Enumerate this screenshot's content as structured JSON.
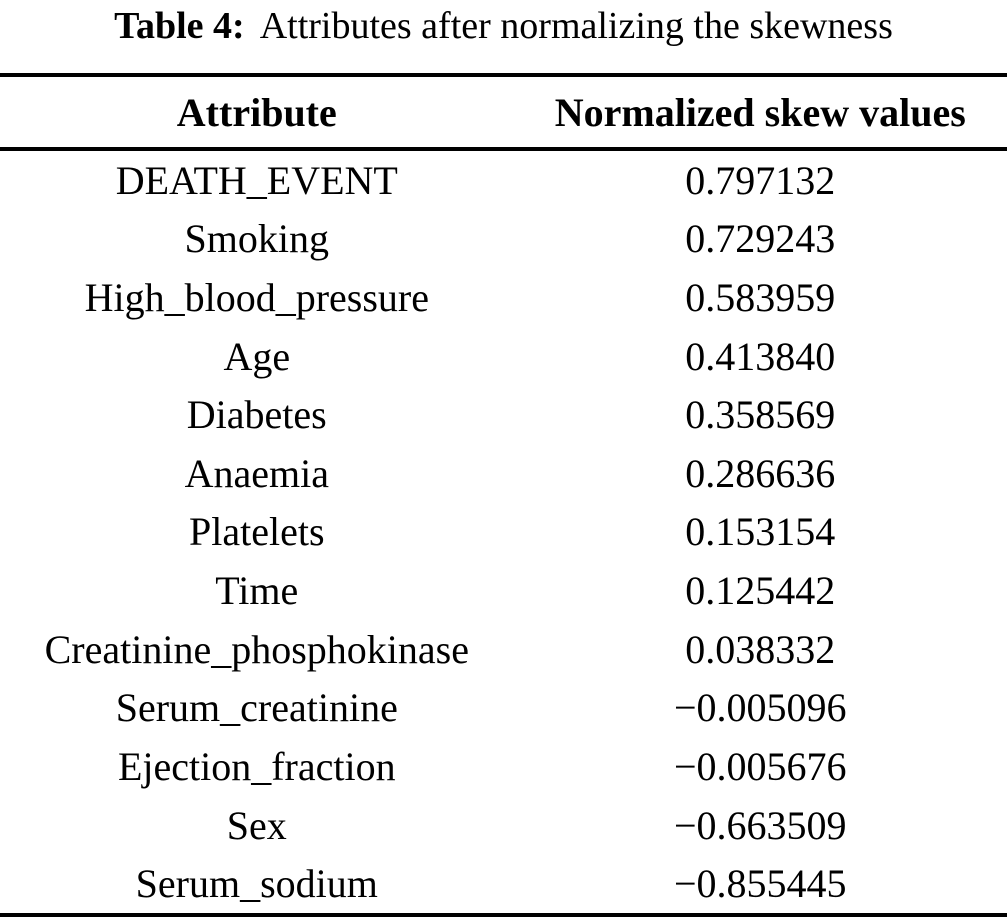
{
  "caption": {
    "label": "Table 4:",
    "text": "Attributes after normalizing the skewness"
  },
  "table": {
    "columns": [
      "Attribute",
      "Normalized skew values"
    ],
    "rows": [
      {
        "attribute": "DEATH_EVENT",
        "value": "0.797132"
      },
      {
        "attribute": "Smoking",
        "value": "0.729243"
      },
      {
        "attribute": "High_blood_pressure",
        "value": "0.583959"
      },
      {
        "attribute": "Age",
        "value": "0.413840"
      },
      {
        "attribute": "Diabetes",
        "value": "0.358569"
      },
      {
        "attribute": "Anaemia",
        "value": "0.286636"
      },
      {
        "attribute": "Platelets",
        "value": "0.153154"
      },
      {
        "attribute": "Time",
        "value": "0.125442"
      },
      {
        "attribute": "Creatinine_phosphokinase",
        "value": "0.038332"
      },
      {
        "attribute": "Serum_creatinine",
        "value": "−0.005096"
      },
      {
        "attribute": "Ejection_fraction",
        "value": "−0.005676"
      },
      {
        "attribute": "Sex",
        "value": "−0.663509"
      },
      {
        "attribute": "Serum_sodium",
        "value": "−0.855445"
      }
    ]
  },
  "chart_data": {
    "type": "table",
    "title": "Table 4: Attributes after normalizing the skewness",
    "categories": [
      "DEATH_EVENT",
      "Smoking",
      "High_blood_pressure",
      "Age",
      "Diabetes",
      "Anaemia",
      "Platelets",
      "Time",
      "Creatinine_phosphokinase",
      "Serum_creatinine",
      "Ejection_fraction",
      "Sex",
      "Serum_sodium"
    ],
    "values": [
      0.797132,
      0.729243,
      0.583959,
      0.41384,
      0.358569,
      0.286636,
      0.153154,
      0.125442,
      0.038332,
      -0.005096,
      -0.005676,
      -0.663509,
      -0.855445
    ],
    "xlabel": "Attribute",
    "ylabel": "Normalized skew values"
  },
  "colors": {
    "text": "#000000",
    "background": "#ffffff",
    "rule": "#000000"
  }
}
